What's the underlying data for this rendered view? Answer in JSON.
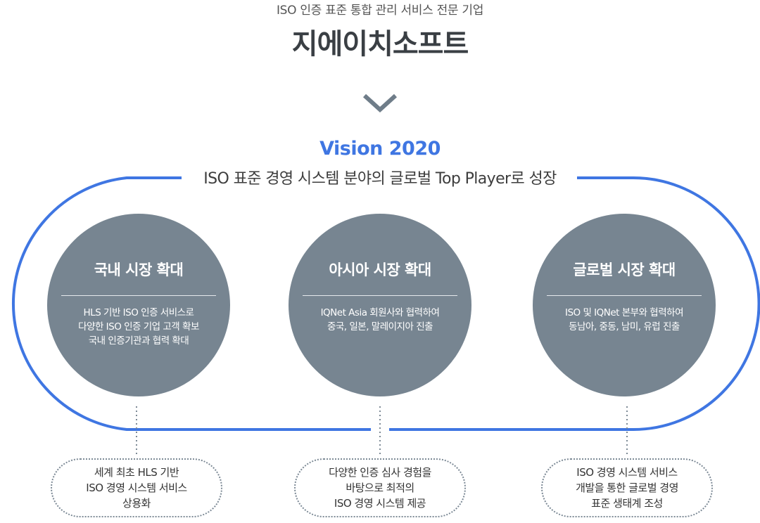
{
  "header": {
    "subtitle": "ISO 인증 표준 통합 관리 서비스 전문 기업",
    "company": "지에이치소프트"
  },
  "icons": {
    "arrow": "chevron-down-icon"
  },
  "vision": {
    "title": "Vision 2020",
    "description": "ISO 표준 경영 시스템 분야의 글로벌 Top Player로 성장"
  },
  "colors": {
    "accent": "#3f76e2",
    "circle": "#778591",
    "chevron": "#6f7d89",
    "dotted": "#7d8a96"
  },
  "strategies": [
    {
      "title": "국내 시장 확대",
      "lines": [
        "HLS 기반 ISO 인증 서비스로",
        "다양한 ISO 인증 기업 고객 확보",
        "국내 인증기관과 협력 확대"
      ],
      "result": [
        "세계 최초 HLS 기반",
        "ISO 경영 시스템 서비스",
        "상용화"
      ]
    },
    {
      "title": "아시아 시장 확대",
      "lines": [
        "IQNet Asia 회원사와 협력하여",
        "중국, 일본, 말레이지아  진출"
      ],
      "result": [
        "다양한 인증 심사 경험을",
        "바탕으로 최적의",
        "ISO 경영 시스템 제공"
      ]
    },
    {
      "title": "글로벌 시장 확대",
      "lines": [
        "ISO 및 IQNet 본부와 협력하여",
        "동남아, 중동, 남미, 유럽 진출"
      ],
      "result": [
        "ISO 경영 시스템 서비스",
        "개발을 통한 글로벌 경영",
        "표준 생태계 조성"
      ]
    }
  ]
}
